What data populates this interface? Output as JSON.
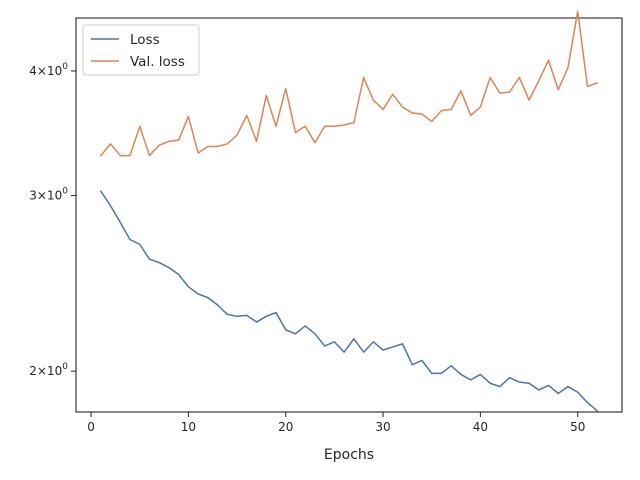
{
  "chart_data": {
    "type": "line",
    "xlabel": "Epochs",
    "ylabel": "",
    "xlim": [
      -1.55,
      54.55
    ],
    "ylim": [
      1.82,
      4.52
    ],
    "yscale": "log",
    "grid": false,
    "legend_position": "upper-left",
    "x_ticks": [
      0,
      10,
      20,
      30,
      40,
      50
    ],
    "x_tick_labels": [
      "0",
      "10",
      "20",
      "30",
      "40",
      "50"
    ],
    "y_ticks": [
      2,
      3,
      4
    ],
    "y_tick_labels": [
      {
        "base": "2",
        "mult": "×",
        "pow": "10",
        "exp": "0"
      },
      {
        "base": "3",
        "mult": "×",
        "pow": "10",
        "exp": "0"
      },
      {
        "base": "4",
        "mult": "×",
        "pow": "10",
        "exp": "0"
      }
    ],
    "x": [
      1,
      2,
      3,
      4,
      5,
      6,
      7,
      8,
      9,
      10,
      11,
      12,
      13,
      14,
      15,
      16,
      17,
      18,
      19,
      20,
      21,
      22,
      23,
      24,
      25,
      26,
      27,
      28,
      29,
      30,
      31,
      32,
      33,
      34,
      35,
      36,
      37,
      38,
      39,
      40,
      41,
      42,
      43,
      44,
      45,
      46,
      47,
      48,
      49,
      50,
      51,
      52
    ],
    "series": [
      {
        "name": "Loss",
        "color": "#4c72b0",
        "values": [
          3.03,
          2.93,
          2.82,
          2.71,
          2.68,
          2.59,
          2.57,
          2.54,
          2.5,
          2.43,
          2.39,
          2.37,
          2.33,
          2.28,
          2.27,
          2.275,
          2.24,
          2.27,
          2.29,
          2.2,
          2.18,
          2.22,
          2.18,
          2.12,
          2.14,
          2.09,
          2.155,
          2.09,
          2.14,
          2.1,
          2.115,
          2.13,
          2.03,
          2.05,
          1.99,
          1.99,
          2.025,
          1.985,
          1.96,
          1.985,
          1.945,
          1.93,
          1.97,
          1.95,
          1.945,
          1.915,
          1.935,
          1.9,
          1.93,
          1.905,
          1.86,
          1.825
        ]
      },
      {
        "name": "Val. loss",
        "color": "#dd8452",
        "values": [
          3.29,
          3.38,
          3.29,
          3.29,
          3.52,
          3.29,
          3.37,
          3.4,
          3.41,
          3.6,
          3.31,
          3.36,
          3.36,
          3.38,
          3.45,
          3.61,
          3.4,
          3.78,
          3.52,
          3.84,
          3.47,
          3.52,
          3.39,
          3.52,
          3.52,
          3.53,
          3.55,
          3.94,
          3.74,
          3.66,
          3.79,
          3.68,
          3.63,
          3.62,
          3.56,
          3.65,
          3.66,
          3.82,
          3.61,
          3.68,
          3.94,
          3.8,
          3.81,
          3.94,
          3.74,
          3.91,
          4.1,
          3.83,
          4.03,
          4.59,
          3.86,
          3.89
        ]
      }
    ]
  }
}
